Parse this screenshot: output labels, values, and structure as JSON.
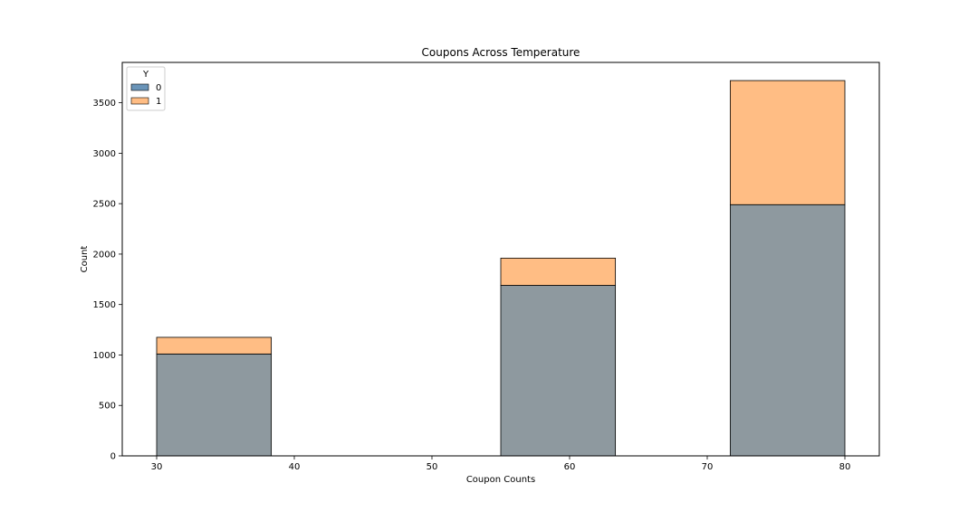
{
  "chart_data": {
    "type": "bar",
    "title": "Coupons Across Temperature",
    "xlabel": "Coupon Counts",
    "ylabel": "Count",
    "xlim": [
      27.5,
      82.5
    ],
    "ylim": [
      0,
      3900
    ],
    "xticks": [
      30,
      40,
      50,
      60,
      70,
      80
    ],
    "yticks": [
      0,
      500,
      1000,
      1500,
      2000,
      2500,
      3000,
      3500
    ],
    "stacked": true,
    "bins": [
      {
        "x0": 30.0,
        "x1": 38.33
      },
      {
        "x0": 55.0,
        "x1": 63.33
      },
      {
        "x0": 71.67,
        "x1": 80.0
      }
    ],
    "series": [
      {
        "name": "0",
        "values": [
          1010,
          1690,
          2490
        ],
        "color": "#8e999f"
      },
      {
        "name": "1",
        "values": [
          165,
          270,
          1230
        ],
        "color": "#ffbd84"
      }
    ],
    "legend": {
      "title": "Y",
      "placement": "top-left",
      "entries": [
        "0",
        "1"
      ],
      "colors": [
        "#6a94b8",
        "#ffbd84"
      ]
    },
    "grid": false
  }
}
